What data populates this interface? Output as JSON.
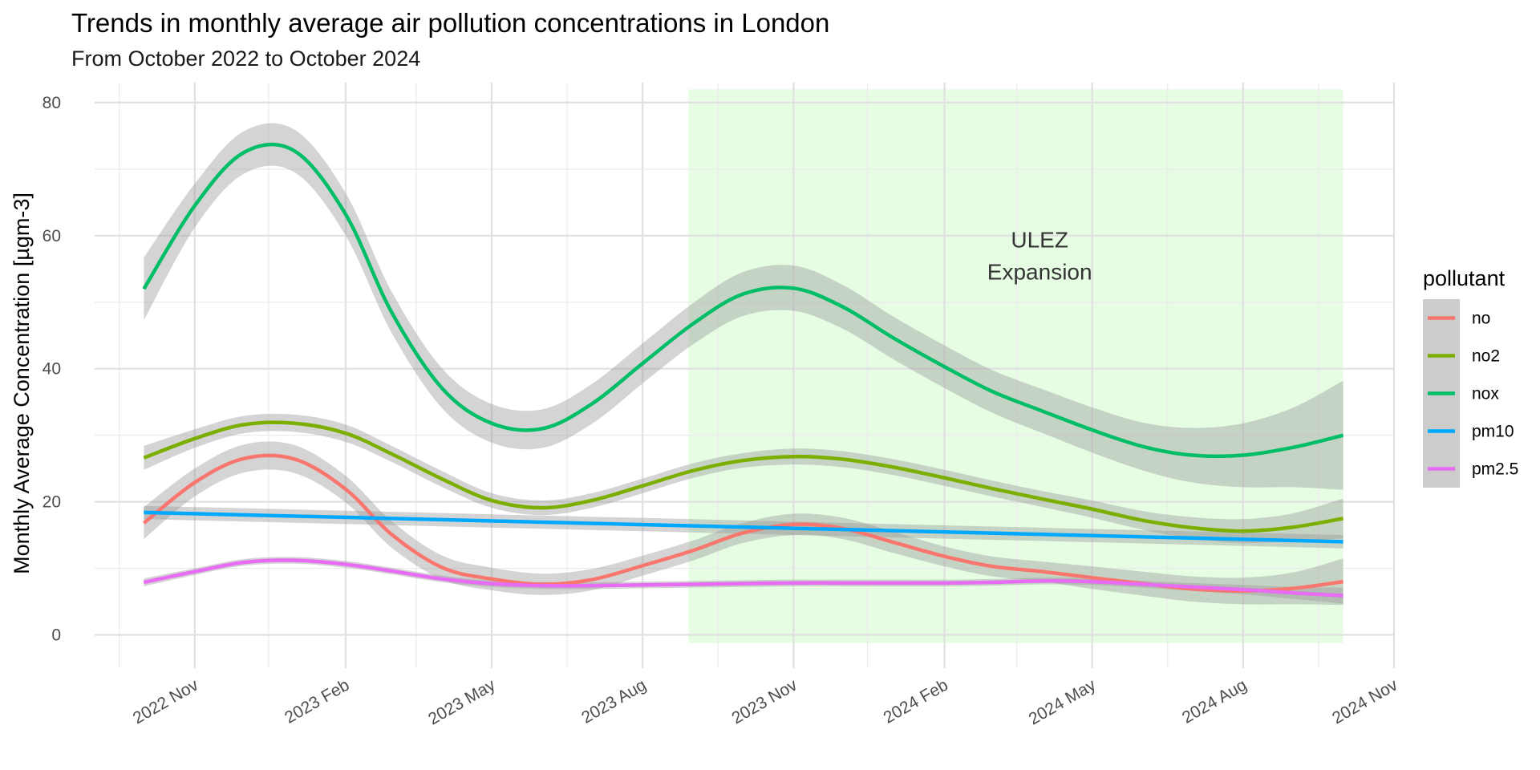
{
  "chart_data": {
    "type": "line",
    "title": "Trends in monthly average air pollution concentrations in London",
    "subtitle": "From October 2022 to October 2024",
    "xlabel": "",
    "ylabel": "Monthly Average Concentration [µgm-3]",
    "xlim": [
      "2022-09-01",
      "2024-11-01"
    ],
    "ylim": [
      -5,
      83
    ],
    "y_ticks": [
      0,
      20,
      40,
      60,
      80
    ],
    "x_ticks": [
      {
        "date": "2022-11-01",
        "label": "2022 Nov"
      },
      {
        "date": "2023-02-01",
        "label": "2023 Feb"
      },
      {
        "date": "2023-05-01",
        "label": "2023 May"
      },
      {
        "date": "2023-08-01",
        "label": "2023 Aug"
      },
      {
        "date": "2023-11-01",
        "label": "2023 Nov"
      },
      {
        "date": "2024-02-01",
        "label": "2024 Feb"
      },
      {
        "date": "2024-05-01",
        "label": "2024 May"
      },
      {
        "date": "2024-08-01",
        "label": "2024 Aug"
      },
      {
        "date": "2024-11-01",
        "label": "2024 Nov"
      }
    ],
    "x_minor_ticks": [
      "2022-09-16",
      "2022-12-16",
      "2023-03-16",
      "2023-06-16",
      "2023-09-16",
      "2023-12-16",
      "2024-03-16",
      "2024-06-16",
      "2024-09-16"
    ],
    "grid": true,
    "shaded_region": {
      "x_start": "2023-08-29",
      "x_end": "2024-10-01",
      "y_start": -1.2,
      "y_end": 82,
      "color": "#e6fde4"
    },
    "annotation": {
      "lines": [
        "ULEZ",
        "Expansion"
      ],
      "x": "2024-03-30",
      "y": 57.5
    },
    "legend": {
      "title": "pollutant",
      "position": "right"
    },
    "series": [
      {
        "name": "no",
        "color": "#f8766d",
        "x": [
          "2022-10-01",
          "2022-11-01",
          "2022-12-01",
          "2023-01-01",
          "2023-02-01",
          "2023-03-01",
          "2023-04-01",
          "2023-05-01",
          "2023-06-01",
          "2023-07-01",
          "2023-08-01",
          "2023-09-01",
          "2023-10-01",
          "2023-11-01",
          "2023-12-01",
          "2024-01-01",
          "2024-02-01",
          "2024-03-01",
          "2024-04-01",
          "2024-05-01",
          "2024-06-01",
          "2024-07-01",
          "2024-08-01",
          "2024-09-01",
          "2024-10-01"
        ],
        "y": [
          16.8,
          22.9,
          26.5,
          26.4,
          21.9,
          15.1,
          10.1,
          8.4,
          7.6,
          8.3,
          10.4,
          12.7,
          15.3,
          16.6,
          16.0,
          13.9,
          11.8,
          10.3,
          9.5,
          8.6,
          7.7,
          6.9,
          6.6,
          7.0,
          8.0
        ],
        "band": [
          2.4,
          2.1,
          2.1,
          2.1,
          2.0,
          2.0,
          1.8,
          1.7,
          1.6,
          1.6,
          1.5,
          1.5,
          1.5,
          1.6,
          1.6,
          1.6,
          1.5,
          1.5,
          1.5,
          1.7,
          1.8,
          1.9,
          2.0,
          2.4,
          3.5
        ]
      },
      {
        "name": "no2",
        "color": "#7cae00",
        "x": [
          "2022-10-01",
          "2022-11-01",
          "2022-12-01",
          "2023-01-01",
          "2023-02-01",
          "2023-03-01",
          "2023-04-01",
          "2023-05-01",
          "2023-06-01",
          "2023-07-01",
          "2023-08-01",
          "2023-09-01",
          "2023-10-01",
          "2023-11-01",
          "2023-12-01",
          "2024-01-01",
          "2024-02-01",
          "2024-03-01",
          "2024-04-01",
          "2024-05-01",
          "2024-06-01",
          "2024-07-01",
          "2024-08-01",
          "2024-09-01",
          "2024-10-01"
        ],
        "y": [
          26.6,
          29.5,
          31.6,
          31.8,
          30.3,
          27.2,
          23.4,
          20.2,
          19.1,
          20.2,
          22.4,
          24.7,
          26.2,
          26.8,
          26.4,
          25.2,
          23.6,
          22.0,
          20.4,
          18.9,
          17.2,
          16.1,
          15.6,
          16.2,
          17.5
        ],
        "band": [
          1.8,
          1.4,
          1.3,
          1.3,
          1.3,
          1.2,
          1.2,
          1.1,
          1.1,
          1.1,
          1.1,
          1.1,
          1.1,
          1.2,
          1.2,
          1.2,
          1.2,
          1.2,
          1.2,
          1.3,
          1.4,
          1.6,
          1.8,
          2.1,
          3.0
        ]
      },
      {
        "name": "nox",
        "color": "#00be67",
        "x": [
          "2022-10-01",
          "2022-11-01",
          "2022-12-01",
          "2023-01-01",
          "2023-02-01",
          "2023-03-01",
          "2023-04-01",
          "2023-05-01",
          "2023-06-01",
          "2023-07-01",
          "2023-08-01",
          "2023-09-01",
          "2023-10-01",
          "2023-11-01",
          "2023-12-01",
          "2024-01-01",
          "2024-02-01",
          "2024-03-01",
          "2024-04-01",
          "2024-05-01",
          "2024-06-01",
          "2024-07-01",
          "2024-08-01",
          "2024-09-01",
          "2024-10-01"
        ],
        "y": [
          52.0,
          64.5,
          72.5,
          72.7,
          63.2,
          48.5,
          37.0,
          31.8,
          31.0,
          34.7,
          40.8,
          46.8,
          51.2,
          52.1,
          49.3,
          44.6,
          40.3,
          36.6,
          33.6,
          30.8,
          28.3,
          27.0,
          27.0,
          28.2,
          30.0
        ],
        "band": [
          4.7,
          3.3,
          3.2,
          3.2,
          3.2,
          3.1,
          3.0,
          2.9,
          2.9,
          3.0,
          3.0,
          3.1,
          3.3,
          3.4,
          3.3,
          3.2,
          3.2,
          3.2,
          3.3,
          3.4,
          3.6,
          4.1,
          4.8,
          6.0,
          8.2
        ]
      },
      {
        "name": "pm10",
        "color": "#00a9ff",
        "x": [
          "2022-10-01",
          "2024-10-01"
        ],
        "y": [
          18.4,
          14.0
        ],
        "band": [
          1.0,
          1.0
        ]
      },
      {
        "name": "pm2.5",
        "color": "#e76bf3",
        "x": [
          "2022-10-01",
          "2022-11-01",
          "2022-12-01",
          "2023-01-01",
          "2023-02-01",
          "2023-03-01",
          "2023-04-01",
          "2023-05-01",
          "2023-06-01",
          "2023-07-01",
          "2023-08-01",
          "2023-09-01",
          "2023-10-01",
          "2023-11-01",
          "2023-12-01",
          "2024-01-01",
          "2024-02-01",
          "2024-03-01",
          "2024-04-01",
          "2024-05-01",
          "2024-06-01",
          "2024-07-01",
          "2024-08-01",
          "2024-09-01",
          "2024-10-01"
        ],
        "y": [
          7.9,
          9.5,
          10.9,
          11.2,
          10.6,
          9.6,
          8.4,
          7.7,
          7.4,
          7.4,
          7.5,
          7.6,
          7.7,
          7.8,
          7.8,
          7.8,
          7.8,
          7.9,
          8.1,
          8.0,
          7.6,
          7.2,
          6.8,
          6.3,
          5.9
        ],
        "band": [
          0.6,
          0.5,
          0.5,
          0.5,
          0.5,
          0.5,
          0.5,
          0.5,
          0.5,
          0.5,
          0.5,
          0.5,
          0.5,
          0.5,
          0.5,
          0.5,
          0.5,
          0.5,
          0.5,
          0.5,
          0.5,
          0.6,
          0.7,
          0.9,
          1.2
        ]
      }
    ]
  }
}
